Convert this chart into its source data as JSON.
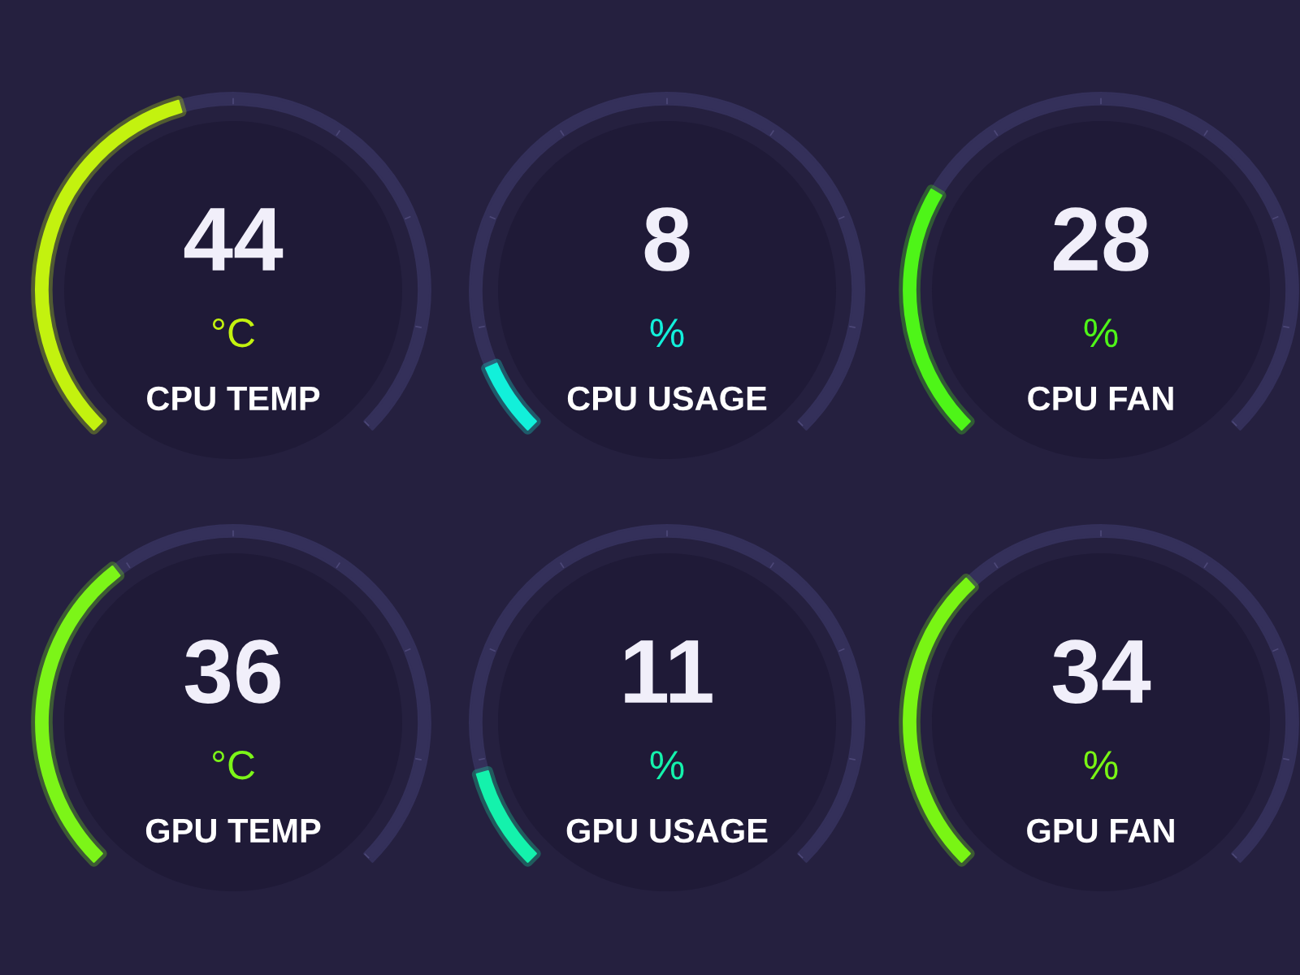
{
  "chart_data": [
    {
      "type": "donut",
      "title": "CPU TEMP",
      "categories": [
        null,
        null
      ],
      "values": [
        44,
        56
      ],
      "colors": [
        "#c3f20f",
        "#34305a"
      ],
      "annotations": [
        "44",
        "°C"
      ]
    },
    {
      "type": "donut",
      "title": "CPU USAGE",
      "categories": [
        null,
        null
      ],
      "values": [
        8,
        92
      ],
      "colors": [
        "#12f0da",
        "#34305a"
      ],
      "annotations": [
        "8",
        "%"
      ]
    },
    {
      "type": "donut",
      "title": "CPU FAN",
      "categories": [
        null,
        null
      ],
      "values": [
        28,
        72
      ],
      "colors": [
        "#4ef518",
        "#34305a"
      ],
      "annotations": [
        "28",
        "%"
      ]
    },
    {
      "type": "donut",
      "title": "GPU TEMP",
      "categories": [
        null,
        null
      ],
      "values": [
        36,
        64
      ],
      "colors": [
        "#7cf518",
        "#34305a"
      ],
      "annotations": [
        "36",
        "°C"
      ]
    },
    {
      "type": "donut",
      "title": "GPU USAGE",
      "categories": [
        null,
        null
      ],
      "values": [
        11,
        89
      ],
      "colors": [
        "#14f2ac",
        "#34305a"
      ],
      "annotations": [
        "11",
        "%"
      ]
    },
    {
      "type": "donut",
      "title": "GPU FAN",
      "categories": [
        null,
        null
      ],
      "values": [
        34,
        66
      ],
      "colors": [
        "#79f514",
        "#34305a"
      ],
      "annotations": [
        "34",
        "%"
      ]
    }
  ]
}
